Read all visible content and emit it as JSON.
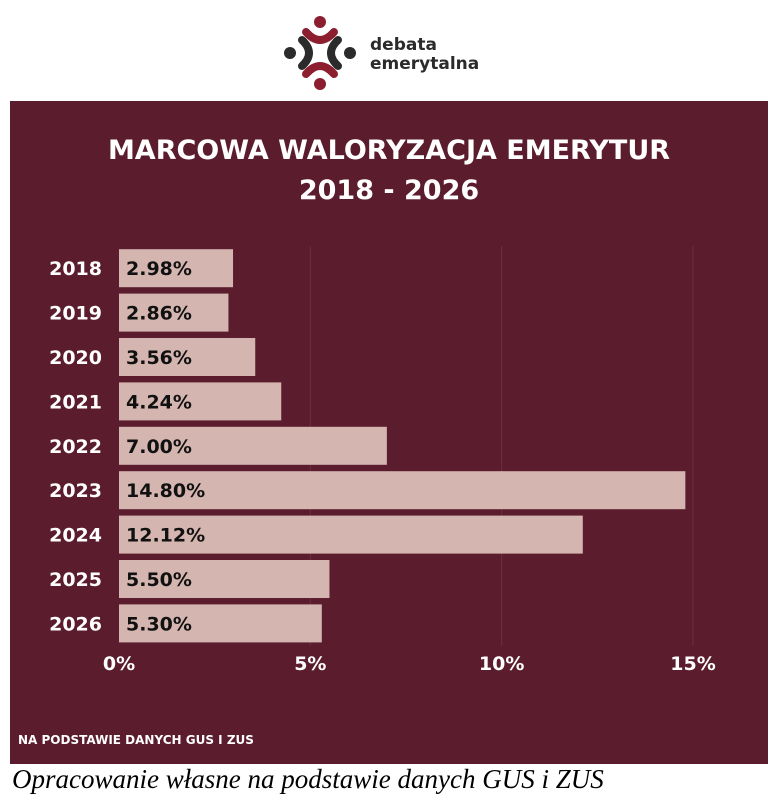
{
  "logo": {
    "line1": "debata",
    "line2": "emerytalna"
  },
  "title_line1": "MARCOWA WALORYZACJA EMERYTUR",
  "title_line2": "2018 - 2026",
  "source_note": "NA PODSTAWIE DANYCH GUS I ZUS",
  "caption": "Opracowanie własne na podstawie danych GUS i ZUS",
  "colors": {
    "panel": "#5b1d2e",
    "bar": "#d4b5b0",
    "text": "#ffffff",
    "bar_label": "#111111"
  },
  "chart_data": {
    "type": "bar",
    "orientation": "horizontal",
    "categories": [
      "2018",
      "2019",
      "2020",
      "2021",
      "2022",
      "2023",
      "2024",
      "2025",
      "2026"
    ],
    "values": [
      2.98,
      2.86,
      3.56,
      4.24,
      7.0,
      14.8,
      12.12,
      5.5,
      5.3
    ],
    "value_labels": [
      "2.98%",
      "2.86%",
      "3.56%",
      "4.24%",
      "7.00%",
      "14.80%",
      "12.12%",
      "5.50%",
      "5.30%"
    ],
    "xlim": [
      0,
      15
    ],
    "xticks": [
      0,
      5,
      10,
      15
    ],
    "xtick_labels": [
      "0%",
      "5%",
      "10%",
      "15%"
    ],
    "grid": "vertical",
    "legend": "none"
  }
}
